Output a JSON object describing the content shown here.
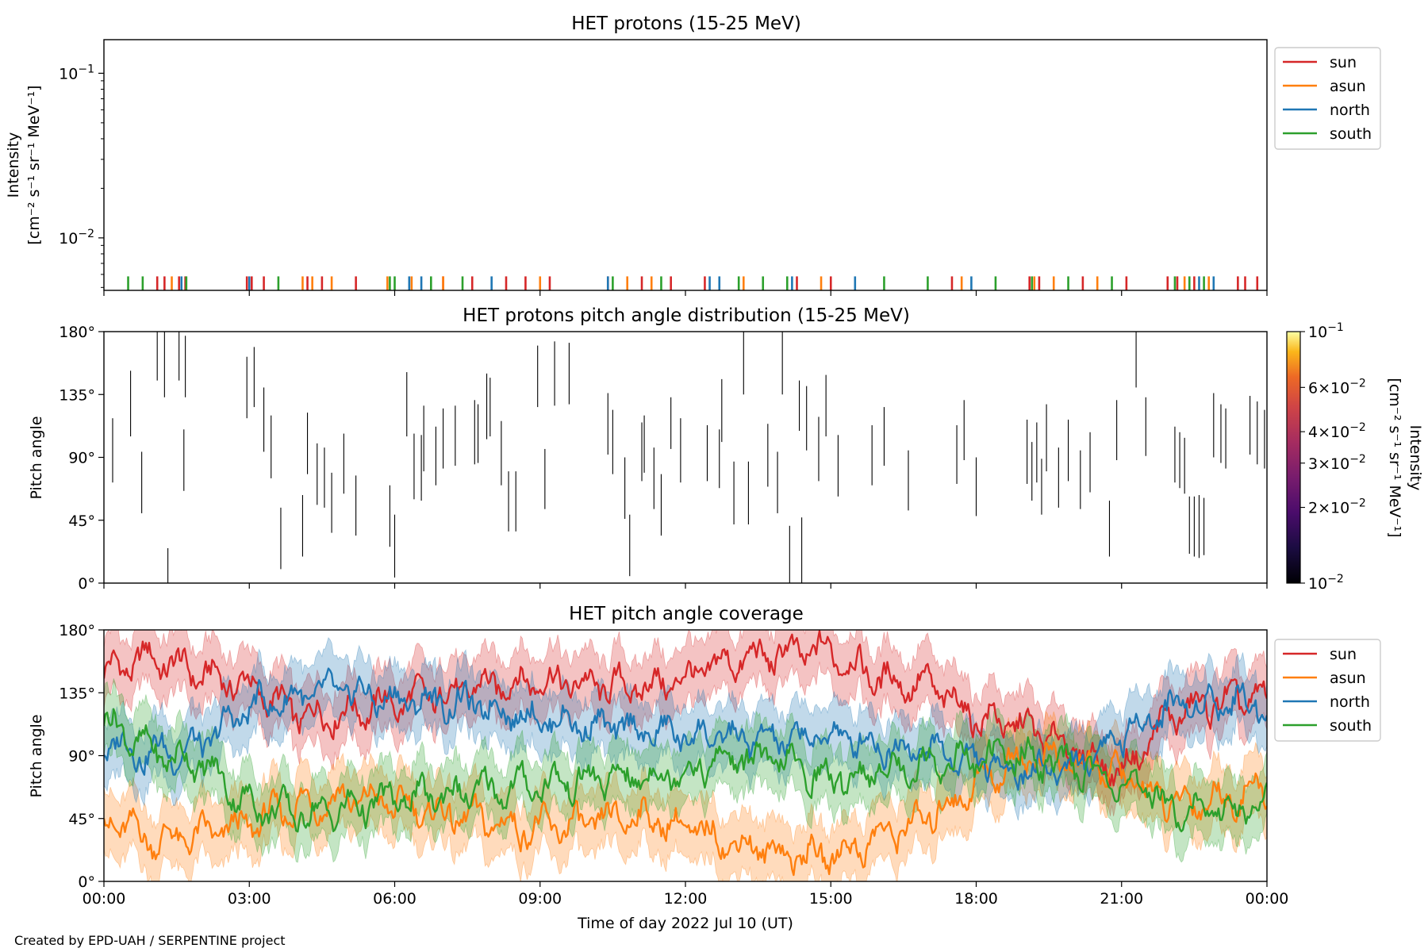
{
  "footer": {
    "credit": "Created by EPD-UAH / SERPENTINE project"
  },
  "colors": {
    "sun": "#d62728",
    "asun": "#ff7f0e",
    "north": "#1f77b4",
    "south": "#2ca02c"
  },
  "chart_data": [
    {
      "type": "line",
      "title": "HET protons (15-25 MeV)",
      "ylabel_line1": "Intensity",
      "ylabel_line2": "[cm⁻² s⁻¹ sr⁻¹ MeV⁻¹]",
      "yscale": "log",
      "ylim": [
        0.0048,
        0.16
      ],
      "yticks": [
        {
          "value": 0.1,
          "mantissa": "10",
          "exp": "−1"
        },
        {
          "value": 0.01,
          "mantissa": "10",
          "exp": "−2"
        }
      ],
      "legend": {
        "position": "outside-right",
        "entries": [
          "sun",
          "asun",
          "north",
          "south"
        ]
      },
      "xlim_hours": [
        0,
        24
      ],
      "sparse_events": {
        "level": 0.0054,
        "sun": [
          1.1,
          1.25,
          1.55,
          1.68,
          2.95,
          3.05,
          3.3,
          4.2,
          4.5,
          5.2,
          7.0,
          7.6,
          8.3,
          8.7,
          9.2,
          10.4,
          11.1,
          11.7,
          12.4,
          14.3,
          15.0,
          17.5,
          19.1,
          19.3,
          20.2,
          21.1,
          21.95,
          22.15,
          22.5,
          23.4,
          23.55,
          23.8
        ],
        "asun": [
          1.4,
          4.1,
          4.3,
          4.7,
          5.85,
          6.35,
          7.0,
          9.0,
          10.8,
          11.3,
          13.2,
          14.8,
          17.7,
          19.2,
          19.6,
          20.5,
          22.3,
          22.8
        ],
        "north": [
          1.6,
          3.0,
          6.3,
          6.55,
          8.0,
          10.4,
          12.5,
          12.7,
          14.2,
          15.5,
          17.9,
          22.6,
          22.9
        ],
        "south": [
          0.5,
          0.8,
          1.7,
          3.6,
          5.9,
          6.0,
          6.75,
          7.4,
          10.5,
          11.5,
          13.1,
          13.6,
          14.1,
          16.1,
          17.0,
          18.4,
          19.15,
          19.9,
          20.8,
          22.1,
          22.4,
          22.7
        ]
      }
    },
    {
      "type": "heatmap",
      "title": "HET protons pitch angle distribution (15-25 MeV)",
      "ylabel": "Pitch angle",
      "ylim": [
        0,
        180
      ],
      "yticks": [
        "0°",
        "45°",
        "90°",
        "135°",
        "180°"
      ],
      "xlim_hours": [
        0,
        24
      ],
      "colorbar": {
        "scale": "log",
        "range": [
          0.01,
          0.1
        ],
        "label_line1": "Intensity",
        "label_line2": "[cm⁻² s⁻¹ sr⁻¹ MeV⁻¹]",
        "ticks": [
          {
            "value": 0.1,
            "mantissa": "10",
            "exp": "−1"
          },
          {
            "value": 0.06,
            "mantissa": "6×10",
            "exp": "−2"
          },
          {
            "value": 0.04,
            "mantissa": "4×10",
            "exp": "−2"
          },
          {
            "value": 0.03,
            "mantissa": "3×10",
            "exp": "−2"
          },
          {
            "value": 0.02,
            "mantissa": "2×10",
            "exp": "−2"
          },
          {
            "value": 0.01,
            "mantissa": "10",
            "exp": "−2"
          }
        ]
      },
      "segments": [
        [
          0.18,
          72,
          118
        ],
        [
          0.55,
          105,
          152
        ],
        [
          0.78,
          50,
          94
        ],
        [
          1.1,
          145,
          180
        ],
        [
          1.25,
          133,
          180
        ],
        [
          1.32,
          0,
          25
        ],
        [
          1.55,
          145,
          180
        ],
        [
          1.65,
          66,
          110
        ],
        [
          1.68,
          133,
          177
        ],
        [
          2.95,
          118,
          162
        ],
        [
          3.1,
          126,
          169
        ],
        [
          3.3,
          94,
          140
        ],
        [
          3.45,
          75,
          120
        ],
        [
          3.65,
          10,
          54
        ],
        [
          4.1,
          19,
          63
        ],
        [
          4.2,
          78,
          122
        ],
        [
          4.4,
          56,
          100
        ],
        [
          4.55,
          54,
          97
        ],
        [
          4.7,
          36,
          79
        ],
        [
          4.95,
          64,
          107
        ],
        [
          5.2,
          34,
          77
        ],
        [
          5.9,
          26,
          70
        ],
        [
          6.0,
          4,
          49
        ],
        [
          6.25,
          105,
          151
        ],
        [
          6.4,
          60,
          107
        ],
        [
          6.55,
          59,
          106
        ],
        [
          6.6,
          80,
          127
        ],
        [
          6.85,
          70,
          112
        ],
        [
          7.0,
          82,
          125
        ],
        [
          7.25,
          84,
          127
        ],
        [
          7.65,
          85,
          131
        ],
        [
          7.72,
          86,
          128
        ],
        [
          7.9,
          103,
          150
        ],
        [
          7.97,
          105,
          147
        ],
        [
          8.2,
          70,
          116
        ],
        [
          8.35,
          37,
          80
        ],
        [
          8.5,
          37,
          80
        ],
        [
          8.95,
          126,
          170
        ],
        [
          9.1,
          53,
          96
        ],
        [
          9.3,
          127,
          173
        ],
        [
          9.6,
          128,
          172
        ],
        [
          10.4,
          92,
          136
        ],
        [
          10.5,
          78,
          124
        ],
        [
          10.75,
          46,
          90
        ],
        [
          10.85,
          5,
          49
        ],
        [
          11.1,
          73,
          115
        ],
        [
          11.15,
          79,
          120
        ],
        [
          11.35,
          53,
          97
        ],
        [
          11.5,
          34,
          78
        ],
        [
          11.7,
          96,
          133
        ],
        [
          11.9,
          72,
          118
        ],
        [
          12.45,
          73,
          113
        ],
        [
          12.7,
          68,
          110
        ],
        [
          12.75,
          101,
          146
        ],
        [
          13.0,
          42,
          87
        ],
        [
          13.2,
          135,
          180
        ],
        [
          13.3,
          42,
          87
        ],
        [
          13.7,
          69,
          114
        ],
        [
          13.9,
          50,
          94
        ],
        [
          14.0,
          135,
          180
        ],
        [
          14.15,
          0,
          41
        ],
        [
          14.35,
          109,
          145
        ],
        [
          14.4,
          0,
          47
        ],
        [
          14.5,
          95,
          141
        ],
        [
          14.75,
          73,
          119
        ],
        [
          14.9,
          105,
          149
        ],
        [
          15.15,
          62,
          106
        ],
        [
          15.85,
          70,
          113
        ],
        [
          16.1,
          84,
          126
        ],
        [
          16.6,
          52,
          95
        ],
        [
          17.6,
          71,
          113
        ],
        [
          17.75,
          88,
          131
        ],
        [
          18.0,
          48,
          90
        ],
        [
          19.05,
          71,
          117
        ],
        [
          19.15,
          59,
          101
        ],
        [
          19.25,
          72,
          115
        ],
        [
          19.35,
          49,
          89
        ],
        [
          19.45,
          80,
          128
        ],
        [
          19.7,
          54,
          97
        ],
        [
          19.9,
          73,
          117
        ],
        [
          20.15,
          53,
          95
        ],
        [
          20.35,
          65,
          108
        ],
        [
          20.75,
          19,
          59
        ],
        [
          20.9,
          88,
          131
        ],
        [
          21.3,
          140,
          180
        ],
        [
          21.5,
          91,
          133
        ],
        [
          22.1,
          72,
          112
        ],
        [
          22.2,
          68,
          108
        ],
        [
          22.3,
          64,
          104
        ],
        [
          22.4,
          21,
          62
        ],
        [
          22.5,
          19,
          62
        ],
        [
          22.6,
          18,
          63
        ],
        [
          22.7,
          20,
          61
        ],
        [
          22.9,
          90,
          136
        ],
        [
          23.05,
          86,
          128
        ],
        [
          23.15,
          82,
          125
        ],
        [
          23.65,
          92,
          134
        ],
        [
          23.8,
          85,
          130
        ],
        [
          23.95,
          82,
          124
        ]
      ]
    },
    {
      "type": "area",
      "title": "HET pitch angle coverage",
      "ylabel": "Pitch angle",
      "xlabel": "Time of day 2022 Jul 10 (UT)",
      "ylim": [
        0,
        180
      ],
      "yticks": [
        "0°",
        "45°",
        "90°",
        "135°",
        "180°"
      ],
      "xticks": [
        "00:00",
        "03:00",
        "06:00",
        "09:00",
        "12:00",
        "15:00",
        "18:00",
        "21:00",
        "00:00"
      ],
      "xlim_hours": [
        0,
        24
      ],
      "legend": {
        "position": "outside-right",
        "entries": [
          "sun",
          "asun",
          "north",
          "south"
        ]
      },
      "series_hint": "mean pitch angle per telescope with shaded range",
      "band_half_width_deg": 22,
      "series": [
        {
          "name": "sun",
          "x": [
            0,
            1,
            2,
            3,
            4,
            5,
            6,
            7,
            8,
            9,
            10,
            11,
            12,
            13,
            14,
            15,
            16,
            17,
            18,
            19,
            20,
            21,
            22,
            23,
            24
          ],
          "y": [
            150,
            160,
            148,
            140,
            118,
            122,
            128,
            134,
            140,
            145,
            140,
            138,
            145,
            158,
            162,
            165,
            145,
            140,
            118,
            110,
            95,
            78,
            118,
            128,
            130
          ]
        },
        {
          "name": "asun",
          "x": [
            0,
            1,
            2,
            3,
            4,
            5,
            6,
            7,
            8,
            9,
            10,
            11,
            12,
            13,
            14,
            15,
            16,
            17,
            18,
            19,
            20,
            21,
            22,
            23,
            24
          ],
          "y": [
            45,
            30,
            32,
            40,
            55,
            60,
            55,
            48,
            42,
            38,
            40,
            48,
            38,
            28,
            20,
            18,
            32,
            45,
            70,
            90,
            85,
            75,
            55,
            60,
            65
          ]
        },
        {
          "name": "north",
          "x": [
            0,
            1,
            2,
            3,
            4,
            5,
            6,
            7,
            8,
            9,
            10,
            11,
            12,
            13,
            14,
            15,
            16,
            17,
            18,
            19,
            20,
            21,
            22,
            23,
            24
          ],
          "y": [
            100,
            92,
            96,
            125,
            132,
            135,
            130,
            128,
            125,
            118,
            112,
            108,
            105,
            102,
            100,
            105,
            98,
            95,
            85,
            80,
            82,
            105,
            125,
            130,
            128
          ]
        },
        {
          "name": "south",
          "x": [
            0,
            1,
            2,
            3,
            4,
            5,
            6,
            7,
            8,
            9,
            10,
            11,
            12,
            13,
            14,
            15,
            16,
            17,
            18,
            19,
            20,
            21,
            22,
            23,
            24
          ],
          "y": [
            118,
            92,
            85,
            55,
            48,
            52,
            58,
            62,
            65,
            70,
            72,
            75,
            80,
            88,
            85,
            72,
            80,
            85,
            88,
            90,
            82,
            70,
            55,
            50,
            55
          ]
        }
      ]
    }
  ]
}
